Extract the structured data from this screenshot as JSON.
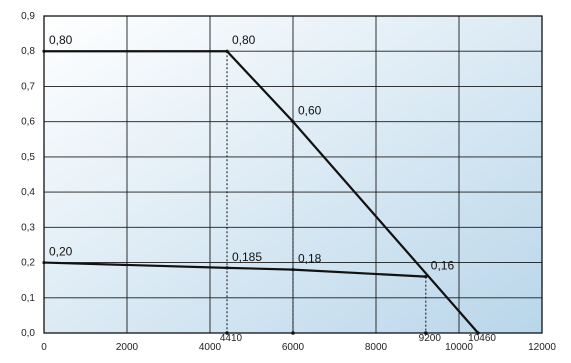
{
  "chart_data": {
    "type": "line",
    "title": "",
    "xlabel": "",
    "ylabel": "",
    "xlim": [
      0,
      12000
    ],
    "ylim": [
      0,
      0.9
    ],
    "grid": true,
    "background": {
      "from": "#ffffff",
      "to": "#b9d6ea"
    },
    "line_color": "#111111",
    "x_ticks": [
      {
        "value": 0,
        "label": "0"
      },
      {
        "value": 2000,
        "label": "2000"
      },
      {
        "value": 4000,
        "label": "4000"
      },
      {
        "value": 6000,
        "label": "6000"
      },
      {
        "value": 8000,
        "label": "8000"
      },
      {
        "value": 10000,
        "label": "10000"
      },
      {
        "value": 12000,
        "label": "12000"
      }
    ],
    "y_ticks": [
      {
        "value": 0,
        "label": "0,0"
      },
      {
        "value": 0.1,
        "label": "0,1"
      },
      {
        "value": 0.2,
        "label": "0,2"
      },
      {
        "value": 0.3,
        "label": "0,3"
      },
      {
        "value": 0.4,
        "label": "0,4"
      },
      {
        "value": 0.5,
        "label": "0,5"
      },
      {
        "value": 0.6,
        "label": "0,6"
      },
      {
        "value": 0.7,
        "label": "0,7"
      },
      {
        "value": 0.8,
        "label": "0,8"
      },
      {
        "value": 0.9,
        "label": "0,9"
      }
    ],
    "series": [
      {
        "x": [
          0,
          4410,
          6000,
          10460
        ],
        "y": [
          0.8,
          0.8,
          0.6,
          0.0
        ]
      },
      {
        "x": [
          0,
          4410,
          6000,
          9200
        ],
        "y": [
          0.2,
          0.185,
          0.18,
          0.16
        ]
      }
    ],
    "guides": [
      {
        "x": 4410,
        "y_top": 0.8,
        "label": "4410"
      },
      {
        "x": 6000,
        "y_top": 0.6,
        "label": ""
      },
      {
        "x": 9200,
        "y_top": 0.16,
        "label": "9200"
      }
    ],
    "end_label": {
      "x": 10460,
      "label": "10460"
    },
    "annotations": [
      {
        "text": "0,80",
        "x": 0,
        "y": 0.8
      },
      {
        "text": "0,80",
        "x": 4410,
        "y": 0.8
      },
      {
        "text": "0,60",
        "x": 6000,
        "y": 0.6
      },
      {
        "text": "0,20",
        "x": 0,
        "y": 0.2
      },
      {
        "text": "0,185",
        "x": 4410,
        "y": 0.185
      },
      {
        "text": "0,18",
        "x": 6000,
        "y": 0.18
      },
      {
        "text": "0,16",
        "x": 9200,
        "y": 0.16
      }
    ]
  }
}
